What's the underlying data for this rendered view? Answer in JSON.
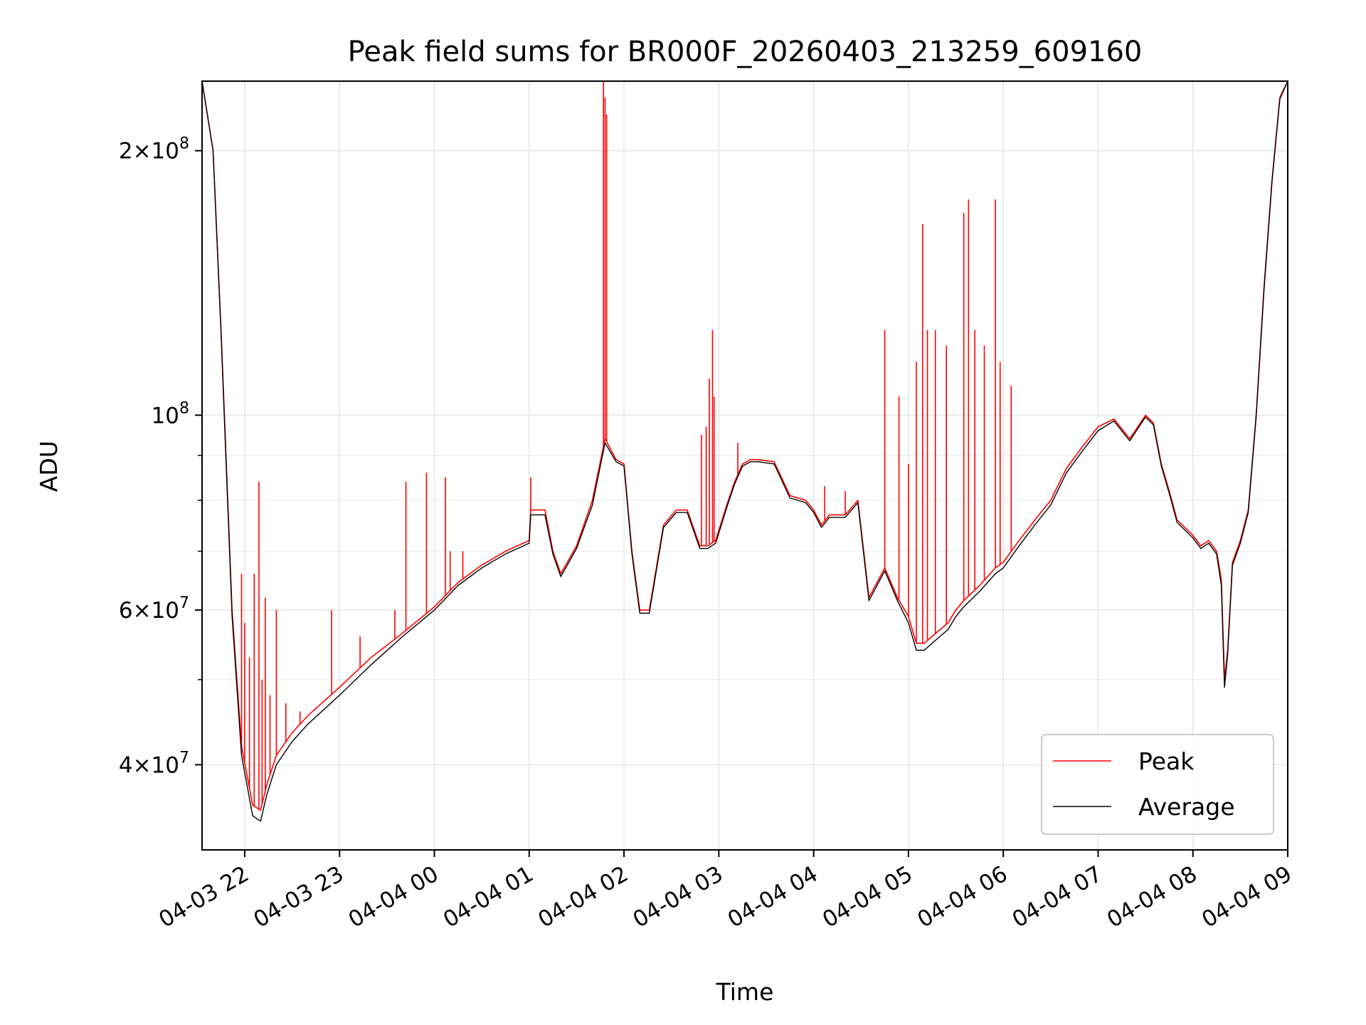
{
  "chart_data": {
    "type": "line",
    "title": "Peak field sums for BR000F_20260403_213259_609160",
    "xlabel": "Time",
    "ylabel": "ADU",
    "x_unit": "hours",
    "xlim": [
      "04-03 21:33",
      "04-04 09:00"
    ],
    "ylim": [
      32000000,
      240000000
    ],
    "yscale": "log",
    "grid": true,
    "legend_position": "lower-right",
    "x_ticks": [
      {
        "label": "04-03 22",
        "time": "04-03 22:00"
      },
      {
        "label": "04-03 23",
        "time": "04-03 23:00"
      },
      {
        "label": "04-04 00",
        "time": "04-04 00:00"
      },
      {
        "label": "04-04 01",
        "time": "04-04 01:00"
      },
      {
        "label": "04-04 02",
        "time": "04-04 02:00"
      },
      {
        "label": "04-04 03",
        "time": "04-04 03:00"
      },
      {
        "label": "04-04 04",
        "time": "04-04 04:00"
      },
      {
        "label": "04-04 05",
        "time": "04-04 05:00"
      },
      {
        "label": "04-04 06",
        "time": "04-04 06:00"
      },
      {
        "label": "04-04 07",
        "time": "04-04 07:00"
      },
      {
        "label": "04-04 08",
        "time": "04-04 08:00"
      },
      {
        "label": "04-04 09",
        "time": "04-04 09:00"
      }
    ],
    "y_ticks": [
      {
        "value": 40000000,
        "mantissa": "4",
        "exponent": "7"
      },
      {
        "value": 60000000,
        "mantissa": "6",
        "exponent": "7"
      },
      {
        "value": 100000000,
        "mantissa": "",
        "exponent": "8"
      },
      {
        "value": 200000000,
        "mantissa": "2",
        "exponent": "8"
      }
    ],
    "y_minor_ticks": [
      50000000,
      70000000,
      80000000,
      90000000
    ],
    "series": [
      {
        "name": "Peak",
        "color": "#ff0000",
        "x": [
          "04-03 21:33",
          "04-03 21:40",
          "04-03 21:45",
          "04-03 21:52",
          "04-03 21:58",
          "04-03 22:05",
          "04-03 22:10",
          "04-03 22:14",
          "04-03 22:20",
          "04-03 22:30",
          "04-03 22:40",
          "04-03 23:00",
          "04-03 23:20",
          "04-03 23:40",
          "04-04 00:00",
          "04-04 00:15",
          "04-04 00:30",
          "04-04 00:45",
          "04-04 01:00",
          "04-04 01:01",
          "04-04 01:10",
          "04-04 01:15",
          "04-04 01:20",
          "04-04 01:30",
          "04-04 01:40",
          "04-04 01:48",
          "04-04 01:55",
          "04-04 02:00",
          "04-04 02:05",
          "04-04 02:10",
          "04-04 02:16",
          "04-04 02:25",
          "04-04 02:33",
          "04-04 02:40",
          "04-04 02:48",
          "04-04 02:53",
          "04-04 02:58",
          "04-04 03:05",
          "04-04 03:10",
          "04-04 03:15",
          "04-04 03:20",
          "04-04 03:25",
          "04-04 03:35",
          "04-04 03:45",
          "04-04 03:55",
          "04-04 04:00",
          "04-04 04:05",
          "04-04 04:10",
          "04-04 04:20",
          "04-04 04:28",
          "04-04 04:35",
          "04-04 04:45",
          "04-04 04:53",
          "04-04 05:00",
          "04-04 05:05",
          "04-04 05:10",
          "04-04 05:15",
          "04-04 05:20",
          "04-04 05:25",
          "04-04 05:30",
          "04-04 05:35",
          "04-04 05:45",
          "04-04 05:55",
          "04-04 06:00",
          "04-04 06:10",
          "04-04 06:20",
          "04-04 06:30",
          "04-04 06:40",
          "04-04 06:50",
          "04-04 07:00",
          "04-04 07:10",
          "04-04 07:20",
          "04-04 07:30",
          "04-04 07:35",
          "04-04 07:40",
          "04-04 07:45",
          "04-04 07:50",
          "04-04 08:00",
          "04-04 08:05",
          "04-04 08:10",
          "04-04 08:15",
          "04-04 08:18",
          "04-04 08:20",
          "04-04 08:22",
          "04-04 08:25",
          "04-04 08:30",
          "04-04 08:35",
          "04-04 08:40",
          "04-04 08:45",
          "04-04 08:50",
          "04-04 08:55",
          "04-04 09:00"
        ],
        "y": [
          240000000,
          200000000,
          125000000,
          60000000,
          42000000,
          36000000,
          35500000,
          38000000,
          41000000,
          43500000,
          45500000,
          49000000,
          53000000,
          56500000,
          60500000,
          64500000,
          67500000,
          70000000,
          72000000,
          78000000,
          78000000,
          70000000,
          66000000,
          71000000,
          80000000,
          94000000,
          89000000,
          88000000,
          70000000,
          60000000,
          60000000,
          75000000,
          78000000,
          78000000,
          71000000,
          71000000,
          72000000,
          79000000,
          84000000,
          88000000,
          89000000,
          89000000,
          88500000,
          81000000,
          80000000,
          78000000,
          75000000,
          77000000,
          77000000,
          80000000,
          62000000,
          67000000,
          62000000,
          59000000,
          55000000,
          55000000,
          56000000,
          57000000,
          58000000,
          60000000,
          61500000,
          64000000,
          67000000,
          68000000,
          72000000,
          76000000,
          80000000,
          87000000,
          92000000,
          97000000,
          99000000,
          94000000,
          100000000,
          98000000,
          88000000,
          82000000,
          76000000,
          73000000,
          71000000,
          72000000,
          70000000,
          65000000,
          50000000,
          54000000,
          68000000,
          72000000,
          78000000,
          100000000,
          140000000,
          185000000,
          230000000,
          240000000
        ],
        "spikes": [
          [
            "04-03 21:58",
            66000000
          ],
          [
            "04-03 22:00",
            58000000
          ],
          [
            "04-03 22:03",
            53000000
          ],
          [
            "04-03 22:06",
            66000000
          ],
          [
            "04-03 22:09",
            84000000
          ],
          [
            "04-03 22:11",
            50000000
          ],
          [
            "04-03 22:13",
            62000000
          ],
          [
            "04-03 22:16",
            48000000
          ],
          [
            "04-03 22:20",
            60000000
          ],
          [
            "04-03 22:26",
            47000000
          ],
          [
            "04-03 22:35",
            46000000
          ],
          [
            "04-03 22:55",
            60000000
          ],
          [
            "04-03 23:13",
            56000000
          ],
          [
            "04-03 23:35",
            60000000
          ],
          [
            "04-03 23:42",
            84000000
          ],
          [
            "04-03 23:55",
            86000000
          ],
          [
            "04-04 00:07",
            85000000
          ],
          [
            "04-04 00:10",
            70000000
          ],
          [
            "04-04 00:18",
            70000000
          ],
          [
            "04-04 01:01",
            85000000
          ],
          [
            "04-04 01:47",
            240000000
          ],
          [
            "04-04 01:48",
            230000000
          ],
          [
            "04-04 01:49",
            220000000
          ],
          [
            "04-04 02:49",
            95000000
          ],
          [
            "04-04 02:52",
            97000000
          ],
          [
            "04-04 02:54",
            110000000
          ],
          [
            "04-04 02:56",
            125000000
          ],
          [
            "04-04 02:57",
            105000000
          ],
          [
            "04-04 03:12",
            93000000
          ],
          [
            "04-04 04:07",
            83000000
          ],
          [
            "04-04 04:20",
            82000000
          ],
          [
            "04-04 04:45",
            125000000
          ],
          [
            "04-04 04:54",
            105000000
          ],
          [
            "04-04 05:00",
            88000000
          ],
          [
            "04-04 05:05",
            115000000
          ],
          [
            "04-04 05:09",
            165000000
          ],
          [
            "04-04 05:12",
            125000000
          ],
          [
            "04-04 05:17",
            125000000
          ],
          [
            "04-04 05:24",
            120000000
          ],
          [
            "04-04 05:35",
            170000000
          ],
          [
            "04-04 05:38",
            176000000
          ],
          [
            "04-04 05:42",
            125000000
          ],
          [
            "04-04 05:48",
            120000000
          ],
          [
            "04-04 05:55",
            176000000
          ],
          [
            "04-04 05:58",
            115000000
          ],
          [
            "04-04 06:05",
            108000000
          ]
        ]
      },
      {
        "name": "Average",
        "color": "#000000",
        "x": [
          "04-03 21:33",
          "04-03 21:40",
          "04-03 21:45",
          "04-03 21:52",
          "04-03 21:58",
          "04-03 22:05",
          "04-03 22:10",
          "04-03 22:14",
          "04-03 22:20",
          "04-03 22:30",
          "04-03 22:40",
          "04-03 23:00",
          "04-03 23:20",
          "04-03 23:40",
          "04-04 00:00",
          "04-04 00:15",
          "04-04 00:30",
          "04-04 00:45",
          "04-04 01:00",
          "04-04 01:01",
          "04-04 01:10",
          "04-04 01:15",
          "04-04 01:20",
          "04-04 01:30",
          "04-04 01:40",
          "04-04 01:48",
          "04-04 01:55",
          "04-04 02:00",
          "04-04 02:05",
          "04-04 02:10",
          "04-04 02:16",
          "04-04 02:25",
          "04-04 02:33",
          "04-04 02:40",
          "04-04 02:48",
          "04-04 02:53",
          "04-04 02:58",
          "04-04 03:05",
          "04-04 03:10",
          "04-04 03:15",
          "04-04 03:20",
          "04-04 03:25",
          "04-04 03:35",
          "04-04 03:45",
          "04-04 03:55",
          "04-04 04:00",
          "04-04 04:05",
          "04-04 04:10",
          "04-04 04:20",
          "04-04 04:28",
          "04-04 04:35",
          "04-04 04:45",
          "04-04 04:53",
          "04-04 05:00",
          "04-04 05:05",
          "04-04 05:10",
          "04-04 05:15",
          "04-04 05:20",
          "04-04 05:25",
          "04-04 05:30",
          "04-04 05:35",
          "04-04 05:45",
          "04-04 05:55",
          "04-04 06:00",
          "04-04 06:10",
          "04-04 06:20",
          "04-04 06:30",
          "04-04 06:40",
          "04-04 06:50",
          "04-04 07:00",
          "04-04 07:10",
          "04-04 07:20",
          "04-04 07:30",
          "04-04 07:35",
          "04-04 07:40",
          "04-04 07:45",
          "04-04 07:50",
          "04-04 08:00",
          "04-04 08:05",
          "04-04 08:10",
          "04-04 08:15",
          "04-04 08:18",
          "04-04 08:20",
          "04-04 08:22",
          "04-04 08:25",
          "04-04 08:30",
          "04-04 08:35",
          "04-04 08:40",
          "04-04 08:45",
          "04-04 08:50",
          "04-04 08:55",
          "04-04 09:00"
        ],
        "y": [
          240000000,
          200000000,
          124000000,
          59000000,
          41000000,
          35000000,
          34500000,
          37000000,
          40000000,
          42500000,
          44500000,
          48000000,
          52000000,
          56000000,
          60000000,
          64000000,
          67000000,
          69500000,
          71500000,
          77000000,
          77000000,
          69500000,
          65500000,
          70500000,
          79000000,
          93000000,
          88500000,
          87500000,
          69500000,
          59500000,
          59500000,
          74500000,
          77500000,
          77500000,
          70500000,
          70500000,
          71500000,
          78500000,
          83500000,
          87500000,
          88500000,
          88500000,
          88000000,
          80500000,
          79500000,
          77500000,
          74500000,
          76500000,
          76500000,
          79500000,
          61500000,
          66500000,
          61500000,
          58000000,
          54000000,
          54000000,
          55000000,
          56000000,
          57000000,
          59000000,
          60500000,
          63000000,
          66000000,
          67000000,
          71000000,
          75000000,
          79000000,
          86000000,
          91000000,
          96000000,
          98500000,
          93500000,
          99500000,
          97500000,
          87500000,
          81500000,
          75500000,
          72500000,
          70500000,
          71500000,
          69500000,
          64000000,
          49000000,
          53500000,
          67500000,
          71500000,
          77500000,
          99500000,
          139000000,
          184000000,
          229000000,
          240000000
        ]
      }
    ]
  }
}
